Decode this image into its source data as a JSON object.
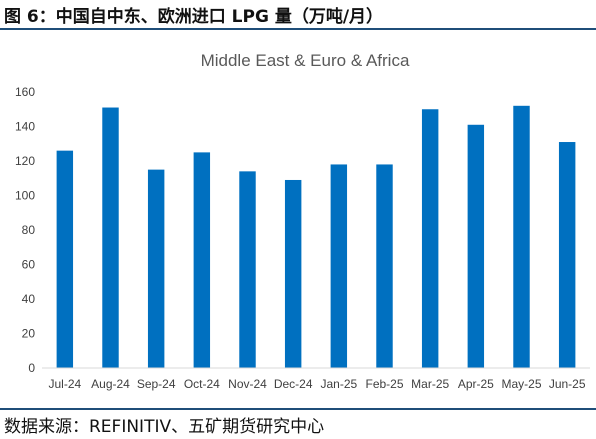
{
  "figure_title": "图 6：中国自中东、欧洲进口 LPG 量（万吨/月）",
  "source": "数据来源：REFINITIV、五矿期货研究中心",
  "colors": {
    "bar": "#0070c0",
    "axis": "#d9d9d9",
    "rule": "#1f4e79"
  },
  "chart_data": {
    "type": "bar",
    "title": "Middle East & Euro & Africa",
    "xlabel": "",
    "ylabel": "",
    "categories": [
      "Jul-24",
      "Aug-24",
      "Sep-24",
      "Oct-24",
      "Nov-24",
      "Dec-24",
      "Jan-25",
      "Feb-25",
      "Mar-25",
      "Apr-25",
      "May-25",
      "Jun-25"
    ],
    "values": [
      126,
      151,
      115,
      125,
      114,
      109,
      118,
      118,
      150,
      141,
      152,
      131
    ],
    "ylim": [
      0,
      160
    ],
    "yticks": [
      "0",
      "20",
      "40",
      "60",
      "80",
      "100",
      "120",
      "140",
      "160"
    ],
    "grid": false,
    "legend": "none"
  }
}
